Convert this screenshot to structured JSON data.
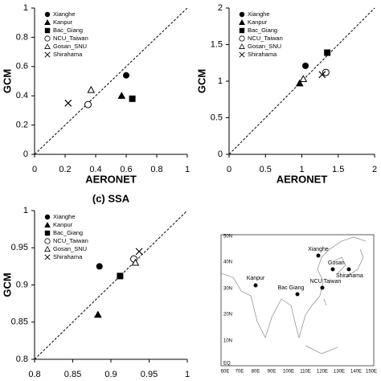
{
  "chart_data": [
    {
      "type": "scatter",
      "xlabel": "AERONET",
      "ylabel": "GCM",
      "xlim": [
        0,
        1
      ],
      "ylim": [
        0,
        1
      ],
      "xticks": [
        0,
        0.2,
        0.4,
        0.6,
        0.8,
        1
      ],
      "yticks": [
        0,
        0.2,
        0.4,
        0.6,
        0.8,
        1
      ],
      "series": [
        {
          "name": "Xianghe",
          "marker": "circle",
          "color": "#000000",
          "x": [
            0.6
          ],
          "values": [
            0.54
          ]
        },
        {
          "name": "Kanpur",
          "marker": "triangle",
          "color": "#000000",
          "x": [
            0.57
          ],
          "values": [
            0.4
          ]
        },
        {
          "name": "Bac_Giang",
          "marker": "square",
          "color": "#000000",
          "x": [
            0.64
          ],
          "values": [
            0.38
          ]
        },
        {
          "name": "NCU_Taiwan",
          "marker": "open-circle",
          "color": "#000000",
          "x": [
            0.35
          ],
          "values": [
            0.34
          ]
        },
        {
          "name": "Gosan_SNU",
          "marker": "open-triangle",
          "color": "#000000",
          "x": [
            0.37
          ],
          "values": [
            0.44
          ]
        },
        {
          "name": "Shirahama",
          "marker": "cross",
          "color": "#000000",
          "x": [
            0.22
          ],
          "values": [
            0.35
          ]
        }
      ]
    },
    {
      "type": "scatter",
      "xlabel": "AERONET",
      "ylabel": "GCM",
      "xlim": [
        0,
        2
      ],
      "ylim": [
        0,
        2
      ],
      "xticks": [
        0,
        0.5,
        1,
        1.5,
        2
      ],
      "yticks": [
        0,
        0.5,
        1,
        1.5,
        2
      ],
      "series": [
        {
          "name": "Xianghe",
          "marker": "circle",
          "color": "#000000",
          "x": [
            1.05
          ],
          "values": [
            1.21
          ]
        },
        {
          "name": "Kanpur",
          "marker": "triangle",
          "color": "#000000",
          "x": [
            0.97
          ],
          "values": [
            0.97
          ]
        },
        {
          "name": "Bac_Giang",
          "marker": "square",
          "color": "#000000",
          "x": [
            1.35
          ],
          "values": [
            1.39
          ]
        },
        {
          "name": "NCU_Taiwan",
          "marker": "open-circle",
          "color": "#000000",
          "x": [
            1.33
          ],
          "values": [
            1.12
          ]
        },
        {
          "name": "Gosan_SNU",
          "marker": "open-triangle",
          "color": "#000000",
          "x": [
            1.02
          ],
          "values": [
            1.03
          ]
        },
        {
          "name": "Shirahama",
          "marker": "cross",
          "color": "#000000",
          "x": [
            1.28
          ],
          "values": [
            1.09
          ]
        }
      ]
    },
    {
      "type": "scatter",
      "title": "(c) SSA",
      "ylabel": "GCM",
      "xlim": [
        0.8,
        1
      ],
      "ylim": [
        0.8,
        1
      ],
      "xticks": [
        0.8,
        0.85,
        0.9,
        0.95,
        1
      ],
      "yticks": [
        0.8,
        0.85,
        0.9,
        0.95,
        1
      ],
      "series": [
        {
          "name": "Xianghe",
          "marker": "circle",
          "color": "#000000",
          "x": [
            0.885
          ],
          "values": [
            0.925
          ]
        },
        {
          "name": "Kanpur",
          "marker": "triangle",
          "color": "#000000",
          "x": [
            0.883
          ],
          "values": [
            0.86
          ]
        },
        {
          "name": "Bac_Giang",
          "marker": "square",
          "color": "#000000",
          "x": [
            0.912
          ],
          "values": [
            0.912
          ]
        },
        {
          "name": "NCU_Taiwan",
          "marker": "open-circle",
          "color": "#000000",
          "x": [
            0.93
          ],
          "values": [
            0.935
          ]
        },
        {
          "name": "Gosan_SNU",
          "marker": "open-triangle",
          "color": "#000000",
          "x": [
            0.932
          ],
          "values": [
            0.93
          ]
        },
        {
          "name": "Shirahama",
          "marker": "cross",
          "color": "#000000",
          "x": [
            0.937
          ],
          "values": [
            0.945
          ]
        }
      ]
    }
  ],
  "map": {
    "lat_labels": [
      "50N",
      "40N",
      "30N",
      "20N",
      "10N",
      "EQ"
    ],
    "lon_labels": [
      "60E",
      "70E",
      "80E",
      "90E",
      "100E",
      "110E",
      "120E",
      "130E",
      "140E",
      "150E"
    ],
    "sites": [
      "Kanpur",
      "Xianghe",
      "Gosan",
      "Shirahama",
      "Bac Giang",
      "NCU Taiwan"
    ]
  }
}
